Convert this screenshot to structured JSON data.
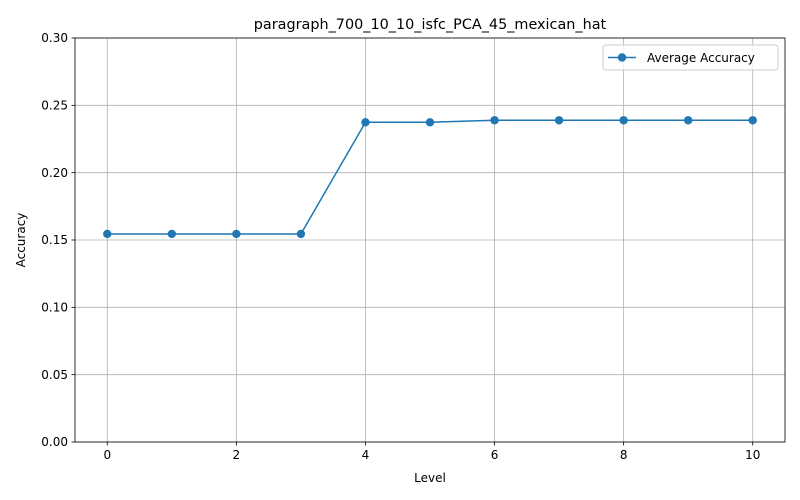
{
  "chart_data": {
    "type": "line",
    "title": "paragraph_700_10_10_isfc_PCA_45_mexican_hat",
    "xlabel": "Level",
    "ylabel": "Accuracy",
    "x": [
      0,
      1,
      2,
      3,
      4,
      5,
      6,
      7,
      8,
      9,
      10
    ],
    "series": [
      {
        "name": "Average Accuracy",
        "values": [
          0.1545,
          0.1545,
          0.1545,
          0.1545,
          0.2374,
          0.2374,
          0.2389,
          0.2389,
          0.2389,
          0.2389,
          0.2389
        ],
        "color": "#1f77b4",
        "marker": "circle"
      }
    ],
    "xlim": [
      -0.5,
      10.5
    ],
    "ylim": [
      0,
      0.3
    ],
    "xticks": [
      0,
      2,
      4,
      6,
      8,
      10
    ],
    "yticks": [
      0.0,
      0.05,
      0.1,
      0.15,
      0.2,
      0.25,
      0.3
    ],
    "xtick_labels": [
      "0",
      "2",
      "4",
      "6",
      "8",
      "10"
    ],
    "ytick_labels": [
      "0.00",
      "0.05",
      "0.10",
      "0.15",
      "0.20",
      "0.25",
      "0.30"
    ],
    "grid": true,
    "legend_position": "top-right"
  }
}
